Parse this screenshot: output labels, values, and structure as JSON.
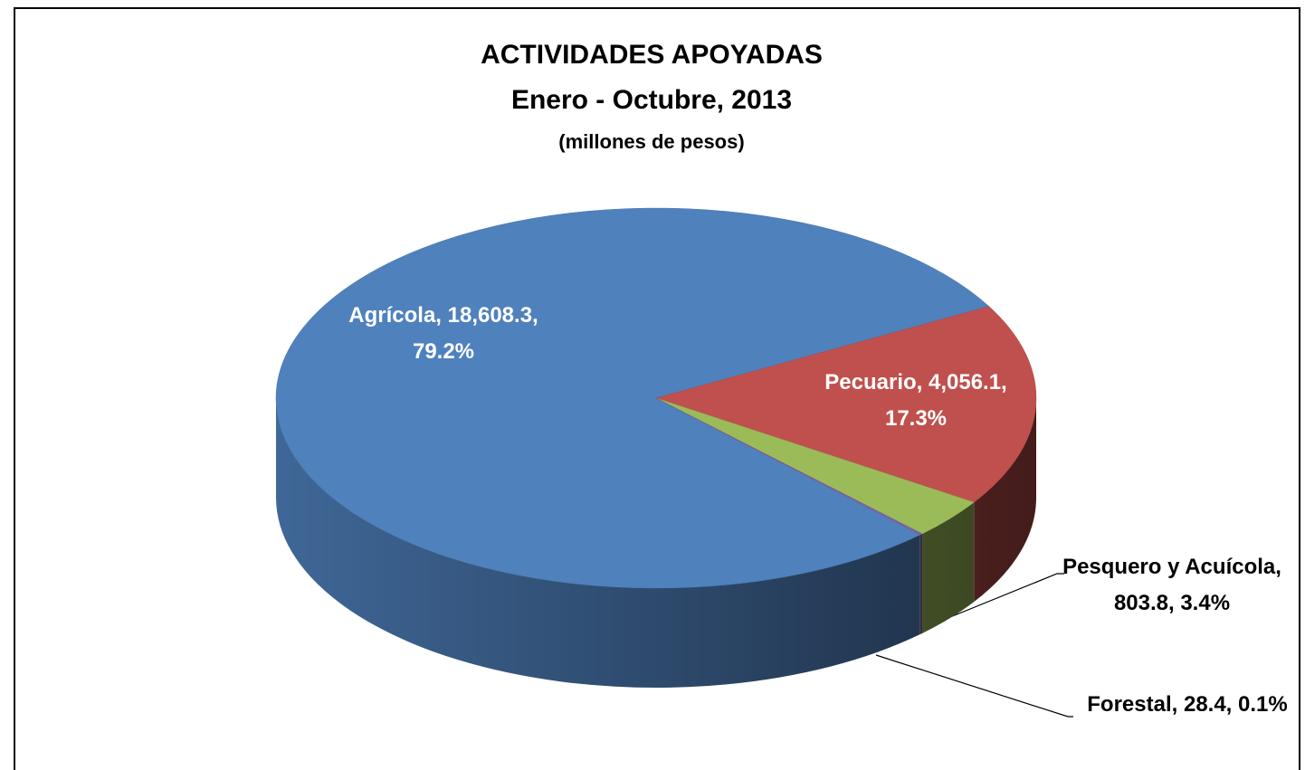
{
  "chart_data": {
    "type": "pie3d",
    "title": "ACTIVIDADES APOYADAS",
    "subtitle": [
      "Enero - Octubre, 2013",
      "(millones de pesos)"
    ],
    "categories": [
      "Agrícola",
      "Pecuario",
      "Pesquero y Acuícola",
      "Forestal"
    ],
    "values": [
      18608.3,
      4056.1,
      803.8,
      28.4
    ],
    "value_labels": [
      [
        "Agrícola, 18,608.3,",
        "79.2%"
      ],
      [
        "Pecuario, 4,056.1,",
        "17.3%"
      ],
      [
        "Pesquero y Acuícola,",
        "803.8, 3.4%"
      ],
      [
        "Forestal, 28.4, 0.1%"
      ]
    ],
    "colors": [
      "#4f81bd",
      "#c0504d",
      "#9bbb59",
      "#8064a2"
    ]
  }
}
